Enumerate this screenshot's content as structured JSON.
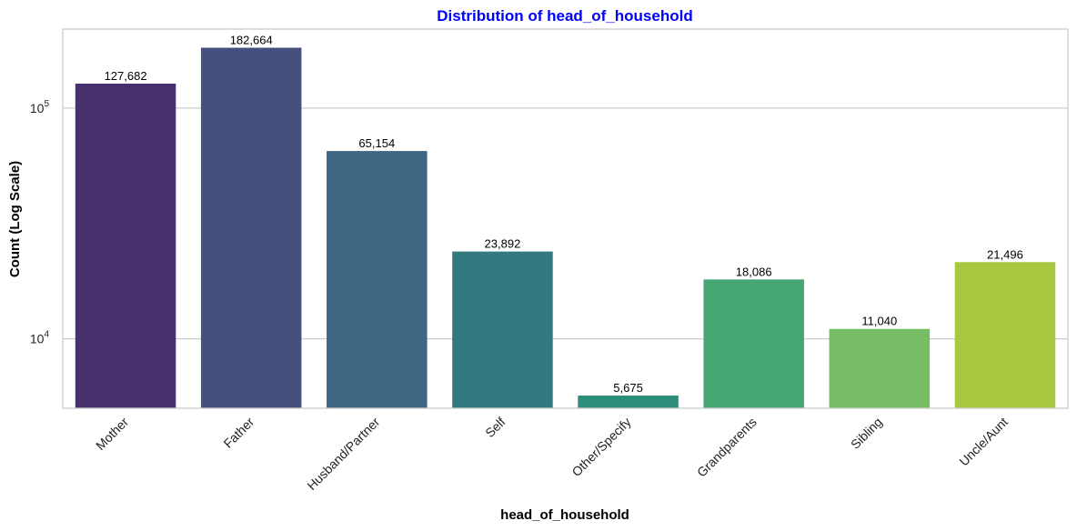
{
  "chart_data": {
    "type": "bar",
    "title": "Distribution of head_of_household",
    "title_color": "#0000ff",
    "xlabel": "head_of_household",
    "ylabel": "Count (Log Scale)",
    "y_scale": "log",
    "ylim": [
      5000,
      220000
    ],
    "y_ticks": [
      10000,
      100000
    ],
    "y_tick_labels": [
      {
        "base": "10",
        "exp": "4"
      },
      {
        "base": "10",
        "exp": "5"
      }
    ],
    "grid": "horizontal",
    "categories": [
      "Mother",
      "Father",
      "Husband/Partner",
      "Self",
      "Other/Specify",
      "Grandparents",
      "Sibling",
      "Uncle/Aunt"
    ],
    "values": [
      127682,
      182664,
      65154,
      23892,
      5675,
      18086,
      11040,
      21496
    ],
    "value_labels": [
      "127,682",
      "182,664",
      "65,154",
      "23,892",
      "5,675",
      "18,086",
      "11,040",
      "21,496"
    ],
    "colors": [
      "#482f6e",
      "#46507f",
      "#3d6682",
      "#33797f",
      "#2b8e7a",
      "#46a674",
      "#76bd65",
      "#a9c741"
    ]
  }
}
